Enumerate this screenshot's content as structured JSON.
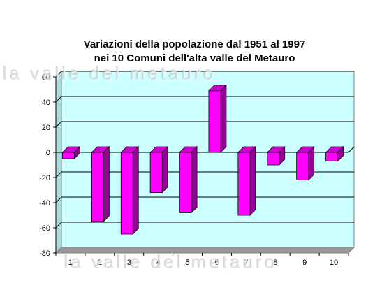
{
  "chart_data": {
    "type": "bar",
    "title_lines": [
      "Variazioni della popolazione dal 1951 al 1997",
      "nei 10 Comuni dell'alta valle del Metauro"
    ],
    "categories": [
      "1",
      "2",
      "3",
      "4",
      "5",
      "6",
      "7",
      "8",
      "9",
      "10"
    ],
    "values": [
      -5,
      -55,
      -65,
      -32,
      -48,
      49,
      -50,
      -10,
      -22,
      -7
    ],
    "yticks": [
      60,
      40,
      20,
      0,
      -20,
      -40,
      -60,
      -80
    ],
    "ylim": [
      -80,
      60
    ],
    "grid": true,
    "legend": "none",
    "colors": {
      "bar_front": "#ff00ff",
      "bar_side": "#990099",
      "bar_top": "#cc00cc",
      "plot_bg": "#ccffff",
      "grid": "#000000"
    }
  },
  "watermark": "la valle del metauro"
}
